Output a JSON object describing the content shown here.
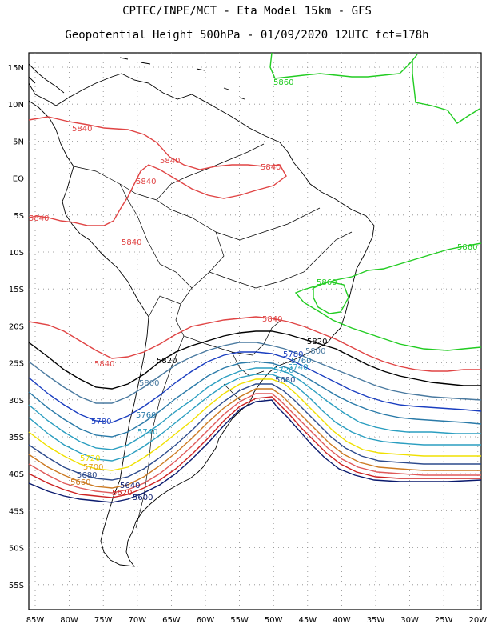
{
  "header": {
    "line1": "CPTEC/INPE/MCT -  Eta Model 15km - GFS",
    "line2": "Geopotential Height 500hPa - 01/09/2020 12UTC fct=178h"
  },
  "map": {
    "lon_ticks": [
      "85W",
      "80W",
      "75W",
      "70W",
      "65W",
      "60W",
      "55W",
      "50W",
      "45W",
      "40W",
      "35W",
      "30W",
      "25W",
      "20W"
    ],
    "lat_ticks": [
      "15N",
      "10N",
      "5N",
      "EQ",
      "5S",
      "10S",
      "15S",
      "20S",
      "25S",
      "30S",
      "35S",
      "40S",
      "45S",
      "50S",
      "55S"
    ],
    "colors": {
      "c5600": "#0a1a6e",
      "c5620": "#cc2222",
      "c5640": "#e05a5a",
      "c5660": "#cc7a22",
      "c5680": "#2c4a8c",
      "c5700": "#e0a020",
      "c5720": "#f0e000",
      "c5740": "#2a9ec0",
      "c5760": "#2a7aa8",
      "c5780": "#1a3ec0",
      "c5800": "#4a7aa0",
      "c5820": "#000000",
      "c5840": "#e04444",
      "c5860": "#22cc22",
      "coast": "#000000",
      "border": "#000000"
    },
    "contour_labels": [
      {
        "text": "5860",
        "color": "c5860"
      },
      {
        "text": "5860",
        "color": "c5860"
      },
      {
        "text": "5860",
        "color": "c5860"
      },
      {
        "text": "5840",
        "color": "c5840"
      },
      {
        "text": "5840",
        "color": "c5840"
      },
      {
        "text": "5840",
        "color": "c5840"
      },
      {
        "text": "5840",
        "color": "c5840"
      },
      {
        "text": "5840",
        "color": "c5840"
      },
      {
        "text": "5840",
        "color": "c5840"
      },
      {
        "text": "5840",
        "color": "c5840"
      },
      {
        "text": "5840",
        "color": "c5840"
      },
      {
        "text": "5820",
        "color": "c5820"
      },
      {
        "text": "5820",
        "color": "c5820"
      },
      {
        "text": "5800",
        "color": "c5800"
      },
      {
        "text": "5800",
        "color": "c5800"
      },
      {
        "text": "5780",
        "color": "c5780"
      },
      {
        "text": "5780",
        "color": "c5780"
      },
      {
        "text": "5760",
        "color": "c5760"
      },
      {
        "text": "5760",
        "color": "c5760"
      },
      {
        "text": "5740",
        "color": "c5740"
      },
      {
        "text": "5740",
        "color": "c5740"
      },
      {
        "text": "5720",
        "color": "c5720"
      },
      {
        "text": "5720",
        "color": "c5740"
      },
      {
        "text": "5700",
        "color": "c5700"
      },
      {
        "text": "5680",
        "color": "c5680"
      },
      {
        "text": "5680",
        "color": "c5680"
      },
      {
        "text": "5660",
        "color": "c5660"
      },
      {
        "text": "5640",
        "color": "c5600"
      },
      {
        "text": "5620",
        "color": "c5620"
      },
      {
        "text": "5600",
        "color": "c5600"
      }
    ]
  }
}
